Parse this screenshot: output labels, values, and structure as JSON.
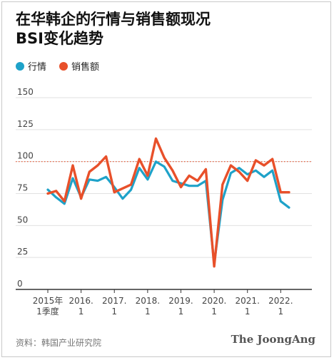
{
  "title_line1": "在华韩企的行情与销售额现况",
  "title_line2": "BSI变化趋势",
  "legend": [
    {
      "label": "行情",
      "color": "#1ea2c9"
    },
    {
      "label": "销售额",
      "color": "#e8502a"
    }
  ],
  "source": "资料：韩国产业研究院",
  "brand": "The JoongAng",
  "chart_data": {
    "type": "line",
    "ylim": [
      0,
      150
    ],
    "yticks": [
      0,
      25,
      50,
      75,
      100,
      125,
      150
    ],
    "reference_line": {
      "value": 100,
      "style": "dotted",
      "color": "#e8502a"
    },
    "x_tick_labels": [
      {
        "index": 0,
        "lines": [
          "2015年",
          "1季度"
        ]
      },
      {
        "index": 4,
        "lines": [
          "2016.",
          "1"
        ]
      },
      {
        "index": 8,
        "lines": [
          "2017.",
          "1"
        ]
      },
      {
        "index": 12,
        "lines": [
          "2018.",
          "1"
        ]
      },
      {
        "index": 16,
        "lines": [
          "2019.",
          "1"
        ]
      },
      {
        "index": 20,
        "lines": [
          "2020.",
          "1"
        ]
      },
      {
        "index": 24,
        "lines": [
          "2021.",
          "1"
        ]
      },
      {
        "index": 28,
        "lines": [
          "2022.",
          "1"
        ]
      }
    ],
    "series": [
      {
        "name": "行情",
        "color": "#1ea2c9",
        "values": [
          78,
          72,
          67,
          87,
          72,
          86,
          85,
          88,
          80,
          71,
          78,
          95,
          86,
          100,
          96,
          85,
          83,
          81,
          81,
          85,
          20,
          70,
          91,
          95,
          90,
          93,
          88,
          93,
          69,
          64
        ]
      },
      {
        "name": "销售额",
        "color": "#e8502a",
        "values": [
          75,
          77,
          69,
          97,
          71,
          92,
          97,
          104,
          76,
          79,
          82,
          102,
          89,
          118,
          103,
          93,
          80,
          89,
          85,
          94,
          18,
          82,
          97,
          92,
          85,
          101,
          97,
          102,
          76,
          76
        ]
      }
    ]
  }
}
